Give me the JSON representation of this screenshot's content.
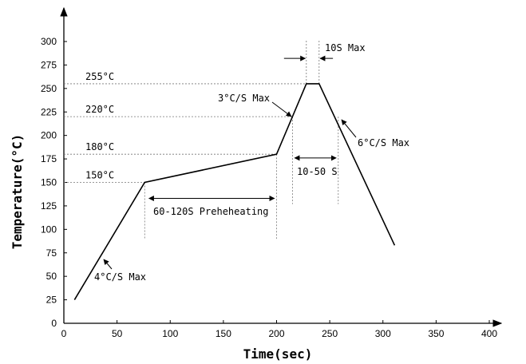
{
  "chart_data": {
    "type": "line",
    "xlabel": "Time(sec)",
    "ylabel": "Temperature(°C)",
    "xlim": [
      0,
      400
    ],
    "ylim": [
      0,
      300
    ],
    "x_ticks": [
      0,
      50,
      100,
      150,
      200,
      250,
      300,
      350,
      400
    ],
    "y_ticks": [
      0,
      25,
      50,
      75,
      100,
      125,
      150,
      175,
      200,
      225,
      250,
      275,
      300
    ],
    "grid": false,
    "series": [
      {
        "points": [
          [
            10,
            25
          ],
          [
            76,
            150
          ],
          [
            200,
            180
          ],
          [
            228,
            255
          ],
          [
            240,
            255
          ],
          [
            311,
            83
          ]
        ]
      }
    ],
    "reference_lines": [
      {
        "label": "255°C",
        "y": 255
      },
      {
        "label": "220°C",
        "y": 220
      },
      {
        "label": "180°C",
        "y": 180
      },
      {
        "label": "150°C",
        "y": 150
      }
    ],
    "annotations": {
      "preheat": "60-120S Preheheating",
      "ramp_up": "4°C/S Max",
      "ramp_to_peak": "3°C/S Max",
      "ramp_down": "6°C/S Max",
      "reflow_window": "10-50 S",
      "peak_hold": "10S Max"
    }
  }
}
